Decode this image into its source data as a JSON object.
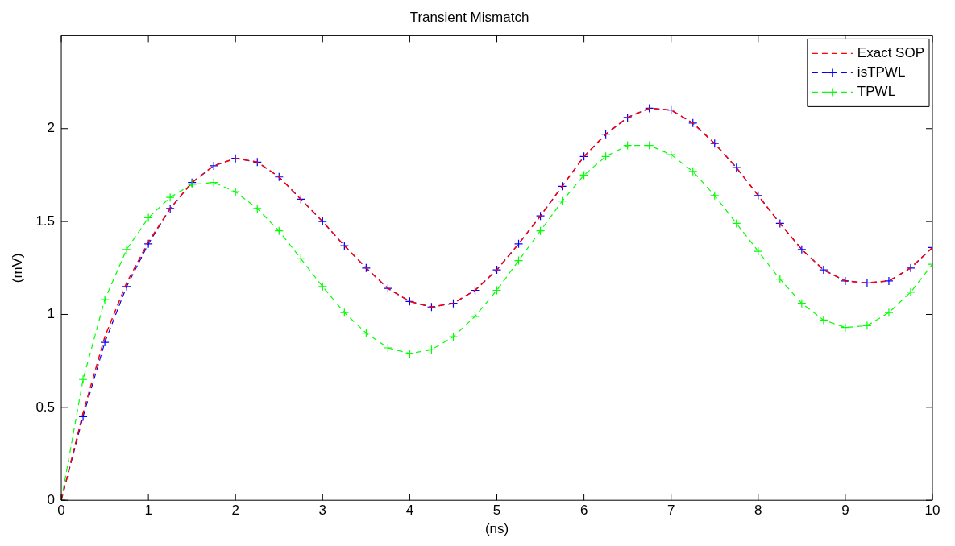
{
  "chart_data": {
    "type": "line",
    "title": "Transient Mismatch",
    "xlabel": "(ns)",
    "ylabel": "(mV)",
    "x": [
      0,
      0.25,
      0.5,
      0.75,
      1,
      1.25,
      1.5,
      1.75,
      2,
      2.25,
      2.5,
      2.75,
      3,
      3.25,
      3.5,
      3.75,
      4,
      4.25,
      4.5,
      4.75,
      5,
      5.25,
      5.5,
      5.75,
      6,
      6.25,
      6.5,
      6.75,
      7,
      7.25,
      7.5,
      7.75,
      8,
      8.25,
      8.5,
      8.75,
      9,
      9.25,
      9.5,
      9.75,
      10
    ],
    "series": [
      {
        "name": "Exact SOP",
        "color": "#ff0000",
        "marker": "none",
        "line_style": "dashed",
        "values": [
          0,
          0.47,
          0.88,
          1.17,
          1.39,
          1.57,
          1.71,
          1.8,
          1.84,
          1.82,
          1.74,
          1.62,
          1.5,
          1.37,
          1.25,
          1.14,
          1.07,
          1.04,
          1.06,
          1.13,
          1.24,
          1.38,
          1.53,
          1.69,
          1.85,
          1.97,
          2.06,
          2.11,
          2.1,
          2.03,
          1.92,
          1.79,
          1.64,
          1.49,
          1.35,
          1.24,
          1.18,
          1.17,
          1.18,
          1.25,
          1.36
        ]
      },
      {
        "name": "isTPWL",
        "color": "#0000ff",
        "marker": "cross",
        "line_style": "dashed",
        "values": [
          0,
          0.45,
          0.85,
          1.15,
          1.38,
          1.57,
          1.71,
          1.8,
          1.84,
          1.82,
          1.74,
          1.62,
          1.5,
          1.37,
          1.25,
          1.14,
          1.07,
          1.04,
          1.06,
          1.13,
          1.24,
          1.38,
          1.53,
          1.69,
          1.85,
          1.97,
          2.06,
          2.11,
          2.1,
          2.03,
          1.92,
          1.79,
          1.64,
          1.49,
          1.35,
          1.24,
          1.18,
          1.17,
          1.18,
          1.25,
          1.36
        ]
      },
      {
        "name": "TPWL",
        "color": "#00ff00",
        "marker": "cross",
        "line_style": "dashed",
        "values": [
          0,
          0.65,
          1.08,
          1.35,
          1.52,
          1.63,
          1.7,
          1.71,
          1.66,
          1.57,
          1.45,
          1.3,
          1.15,
          1.01,
          0.9,
          0.82,
          0.79,
          0.81,
          0.88,
          0.99,
          1.13,
          1.29,
          1.45,
          1.61,
          1.75,
          1.85,
          1.91,
          1.91,
          1.86,
          1.77,
          1.64,
          1.49,
          1.34,
          1.19,
          1.06,
          0.97,
          0.93,
          0.94,
          1.01,
          1.12,
          1.27
        ]
      }
    ],
    "xlim": [
      0,
      10
    ],
    "xticks": [
      0,
      1,
      2,
      3,
      4,
      5,
      6,
      7,
      8,
      9,
      10
    ],
    "ylim": [
      0,
      2.5
    ],
    "yticks": [
      0,
      0.5,
      1,
      1.5,
      2
    ],
    "grid": false,
    "legend": "top right"
  }
}
